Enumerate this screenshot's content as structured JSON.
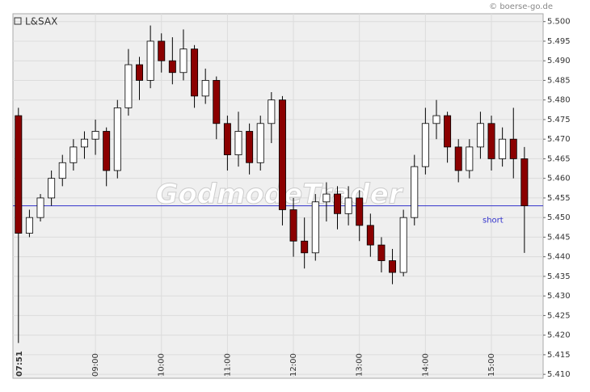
{
  "chart_data": {
    "type": "candlestick",
    "title": "L&SAX",
    "source": "© boerse-go.de",
    "watermark": "GodmodeTrader",
    "x": [
      470,
      480,
      490,
      500,
      510,
      520,
      530,
      540,
      550,
      560,
      570,
      580,
      590,
      600,
      610,
      620,
      630,
      640,
      650,
      660,
      670,
      680,
      690,
      700,
      710,
      720,
      730,
      740,
      750,
      760,
      770,
      780,
      790,
      800,
      810,
      820,
      830,
      840,
      850,
      860,
      870,
      880,
      890,
      900,
      910,
      920,
      930
    ],
    "open": [
      5.476,
      5.446,
      5.45,
      5.455,
      5.46,
      5.464,
      5.468,
      5.47,
      5.472,
      5.462,
      5.478,
      5.489,
      5.485,
      5.495,
      5.49,
      5.487,
      5.493,
      5.481,
      5.485,
      5.474,
      5.466,
      5.472,
      5.464,
      5.474,
      5.48,
      5.452,
      5.444,
      5.441,
      5.454,
      5.456,
      5.451,
      5.455,
      5.448,
      5.443,
      5.439,
      5.436,
      5.45,
      5.463,
      5.474,
      5.476,
      5.468,
      5.462,
      5.468,
      5.474,
      5.465,
      5.47,
      5.465
    ],
    "high": [
      5.478,
      5.452,
      5.456,
      5.462,
      5.466,
      5.47,
      5.472,
      5.475,
      5.473,
      5.48,
      5.493,
      5.491,
      5.499,
      5.497,
      5.496,
      5.498,
      5.494,
      5.488,
      5.486,
      5.476,
      5.477,
      5.474,
      5.476,
      5.482,
      5.481,
      5.455,
      5.45,
      5.456,
      5.459,
      5.458,
      5.458,
      5.457,
      5.451,
      5.445,
      5.442,
      5.452,
      5.466,
      5.478,
      5.48,
      5.477,
      5.47,
      5.47,
      5.477,
      5.476,
      5.473,
      5.478,
      5.468
    ],
    "low": [
      5.418,
      5.445,
      5.449,
      5.453,
      5.458,
      5.462,
      5.465,
      5.466,
      5.458,
      5.46,
      5.476,
      5.48,
      5.483,
      5.487,
      5.484,
      5.485,
      5.478,
      5.479,
      5.47,
      5.462,
      5.463,
      5.461,
      5.462,
      5.469,
      5.448,
      5.44,
      5.437,
      5.439,
      5.449,
      5.447,
      5.448,
      5.444,
      5.44,
      5.436,
      5.433,
      5.435,
      5.448,
      5.461,
      5.47,
      5.464,
      5.459,
      5.46,
      5.465,
      5.462,
      5.463,
      5.46,
      5.441
    ],
    "close": [
      5.446,
      5.45,
      5.455,
      5.46,
      5.464,
      5.468,
      5.47,
      5.472,
      5.462,
      5.478,
      5.489,
      5.485,
      5.495,
      5.49,
      5.487,
      5.493,
      5.481,
      5.485,
      5.474,
      5.466,
      5.472,
      5.464,
      5.474,
      5.48,
      5.452,
      5.444,
      5.441,
      5.454,
      5.456,
      5.451,
      5.455,
      5.448,
      5.443,
      5.439,
      5.436,
      5.45,
      5.463,
      5.474,
      5.476,
      5.468,
      5.462,
      5.468,
      5.474,
      5.465,
      5.47,
      5.465,
      5.453
    ],
    "up_color": "#ffffff",
    "down_color": "#8b0000",
    "xlim": [
      465,
      947
    ],
    "xticks": [
      {
        "value": 471,
        "label": "07:51"
      },
      {
        "value": 540,
        "label": "09:00"
      },
      {
        "value": 600,
        "label": "10:00"
      },
      {
        "value": 660,
        "label": "11:00"
      },
      {
        "value": 720,
        "label": "12:00"
      },
      {
        "value": 780,
        "label": "13:00"
      },
      {
        "value": 840,
        "label": "14:00"
      },
      {
        "value": 900,
        "label": "15:00"
      }
    ],
    "ylim": [
      5.409,
      5.502
    ],
    "yticks": [
      {
        "value": 5.41,
        "label": "5.410"
      },
      5.415,
      {
        "value": 5.42,
        "label": "5.420"
      },
      5.425,
      {
        "value": 5.43,
        "label": "5.430"
      },
      5.435,
      {
        "value": 5.44,
        "label": "5.440"
      },
      5.445,
      {
        "value": 5.45,
        "label": "5.450"
      },
      5.455,
      {
        "value": 5.46,
        "label": "5.460"
      },
      5.465,
      {
        "value": 5.47,
        "label": "5.470"
      },
      5.475,
      {
        "value": 5.48,
        "label": "5.480"
      },
      5.485,
      {
        "value": 5.49,
        "label": "5.490"
      },
      5.495,
      {
        "value": 5.5,
        "label": "5.500"
      }
    ],
    "grid": true,
    "reference_line": {
      "value": 5.453,
      "label": "short",
      "color": "#3333cc"
    }
  }
}
